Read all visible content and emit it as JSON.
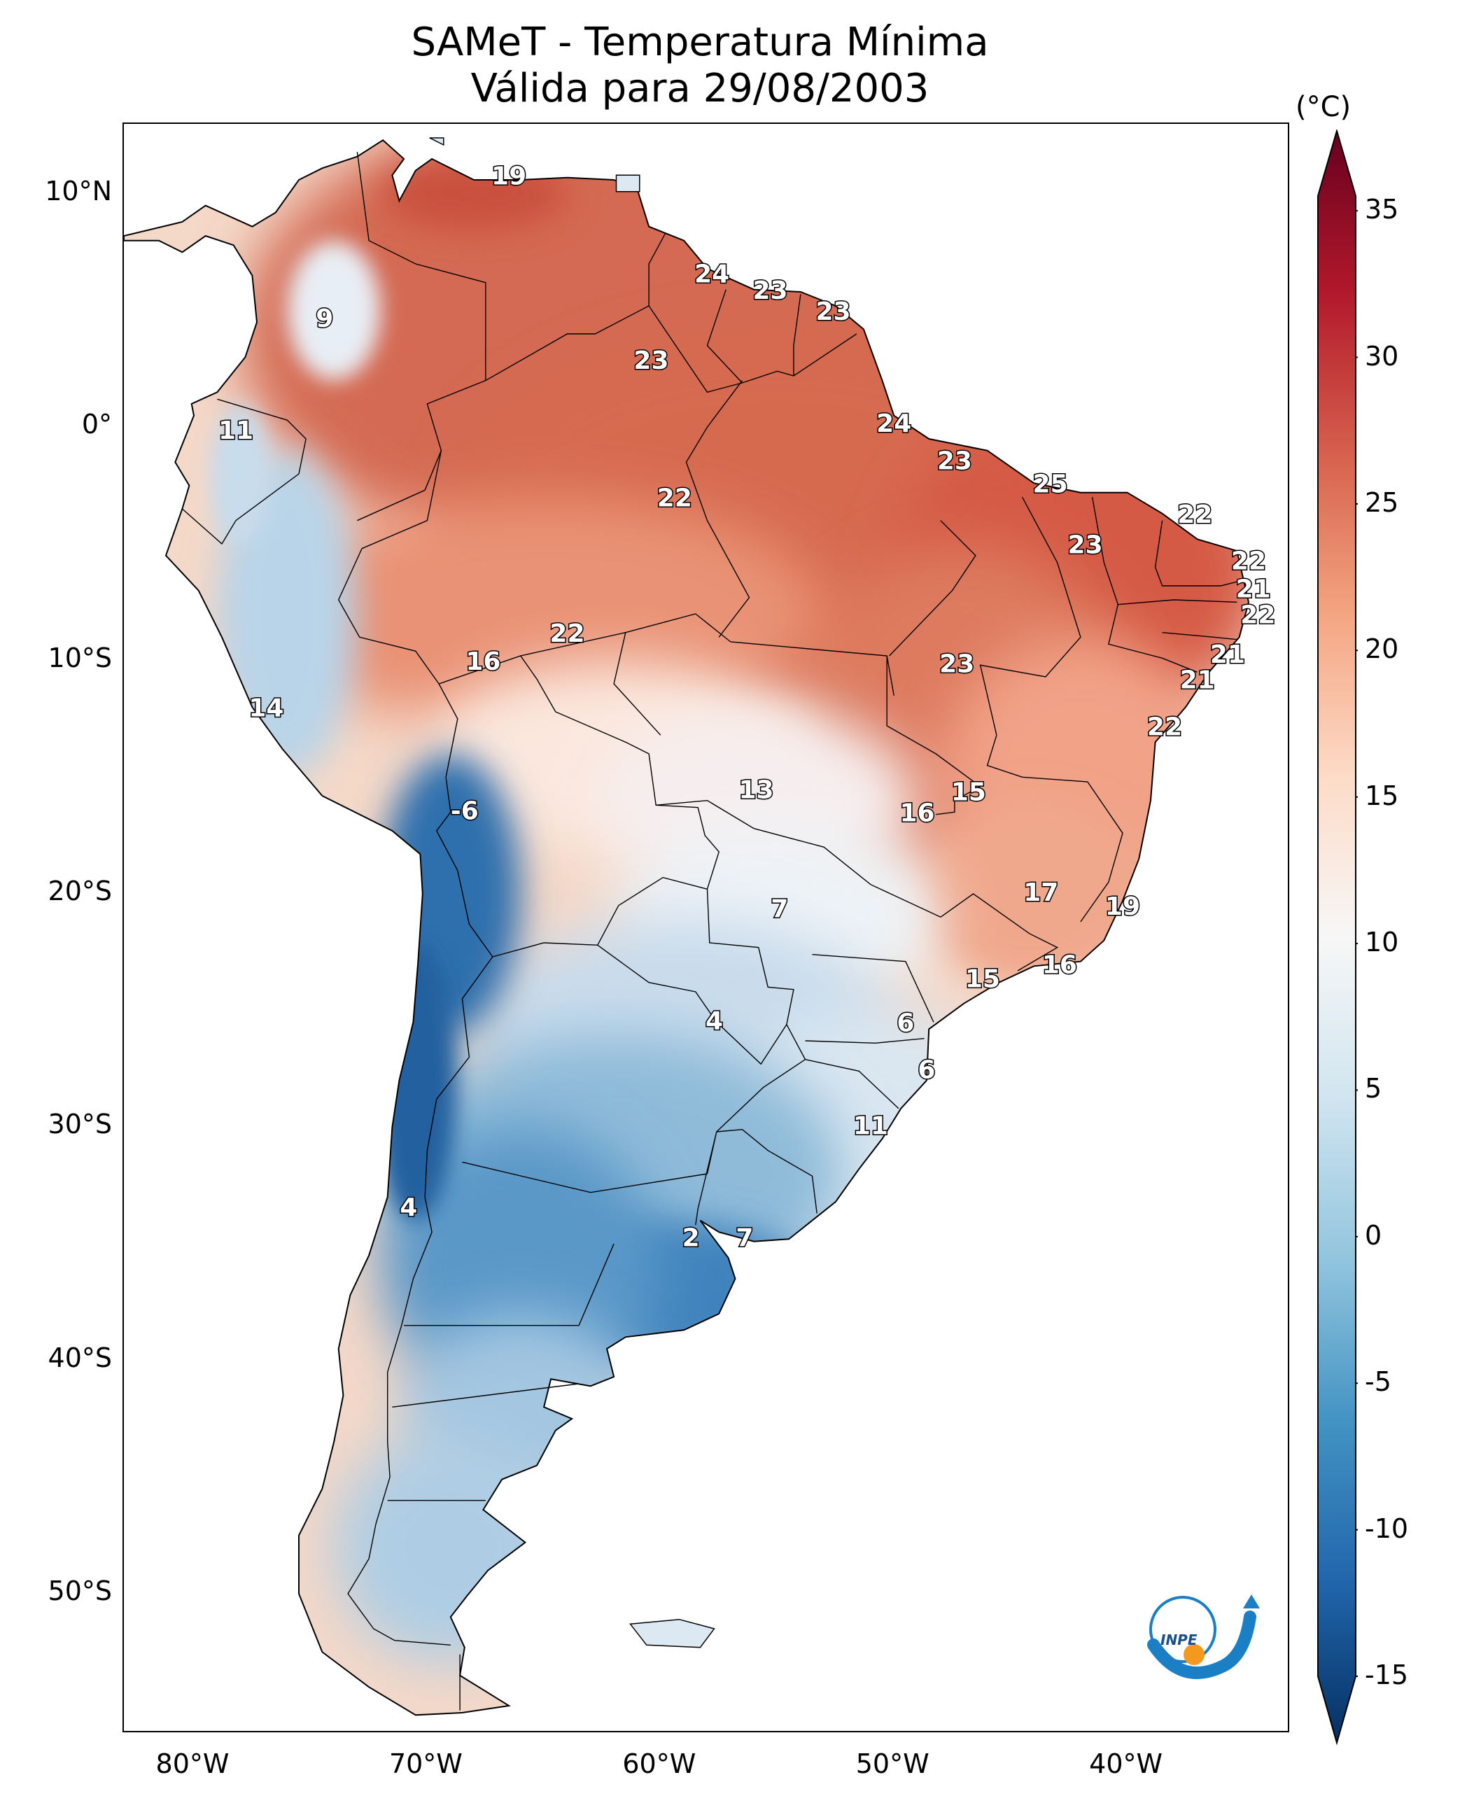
{
  "title": {
    "line1": "SAMeT - Temperatura Mínima",
    "line2": "Válida para 29/08/2003"
  },
  "colorbar": {
    "unit": "(°C)",
    "min": -15,
    "max": 35,
    "ticks": [
      "35",
      "30",
      "25",
      "20",
      "15",
      "10",
      "5",
      "0",
      "-5",
      "-10",
      "-15"
    ],
    "colors": [
      "#053061",
      "#2166ac",
      "#4393c3",
      "#92c5de",
      "#d1e5f0",
      "#f7f7f7",
      "#fddbc7",
      "#f4a582",
      "#d6604d",
      "#b2182b",
      "#67001f"
    ]
  },
  "axes": {
    "lat_labels": [
      "10°N",
      "0°",
      "10°S",
      "20°S",
      "30°S",
      "40°S",
      "50°S"
    ],
    "lon_labels": [
      "80°W",
      "70°W",
      "60°W",
      "50°W",
      "40°W"
    ]
  },
  "map_extent": {
    "lon_min": -83,
    "lon_max": -33,
    "lat_min": -56,
    "lat_max": 13
  },
  "temperature_labels": [
    {
      "text": "19",
      "lon": -66.5,
      "lat": 10.7
    },
    {
      "text": "9",
      "lon": -74.4,
      "lat": 4.6
    },
    {
      "text": "24",
      "lon": -57.8,
      "lat": 6.5
    },
    {
      "text": "23",
      "lon": -55.3,
      "lat": 5.8
    },
    {
      "text": "23",
      "lon": -52.6,
      "lat": 4.9
    },
    {
      "text": "23",
      "lon": -60.4,
      "lat": 2.8
    },
    {
      "text": "11",
      "lon": -78.2,
      "lat": -0.2
    },
    {
      "text": "24",
      "lon": -50.0,
      "lat": 0.1
    },
    {
      "text": "23",
      "lon": -47.4,
      "lat": -1.5
    },
    {
      "text": "25",
      "lon": -43.3,
      "lat": -2.5
    },
    {
      "text": "22",
      "lon": -59.4,
      "lat": -3.1
    },
    {
      "text": "22",
      "lon": -37.1,
      "lat": -3.8
    },
    {
      "text": "23",
      "lon": -41.8,
      "lat": -5.1
    },
    {
      "text": "22",
      "lon": -34.8,
      "lat": -5.8
    },
    {
      "text": "21",
      "lon": -34.6,
      "lat": -7.0
    },
    {
      "text": "22",
      "lon": -34.4,
      "lat": -8.1
    },
    {
      "text": "22",
      "lon": -64.0,
      "lat": -8.9
    },
    {
      "text": "16",
      "lon": -67.6,
      "lat": -10.1
    },
    {
      "text": "23",
      "lon": -47.3,
      "lat": -10.2
    },
    {
      "text": "21",
      "lon": -35.7,
      "lat": -9.8
    },
    {
      "text": "21",
      "lon": -37.0,
      "lat": -10.9
    },
    {
      "text": "14",
      "lon": -76.9,
      "lat": -12.1
    },
    {
      "text": "22",
      "lon": -38.4,
      "lat": -12.9
    },
    {
      "text": "13",
      "lon": -55.9,
      "lat": -15.6
    },
    {
      "text": "15",
      "lon": -46.8,
      "lat": -15.7
    },
    {
      "text": "16",
      "lon": -49.0,
      "lat": -16.6
    },
    {
      "text": "-6",
      "lon": -68.4,
      "lat": -16.5
    },
    {
      "text": "17",
      "lon": -43.7,
      "lat": -20.0
    },
    {
      "text": "19",
      "lon": -40.2,
      "lat": -20.6
    },
    {
      "text": "7",
      "lon": -54.9,
      "lat": -20.7
    },
    {
      "text": "16",
      "lon": -42.9,
      "lat": -23.1
    },
    {
      "text": "15",
      "lon": -46.2,
      "lat": -23.7
    },
    {
      "text": "4",
      "lon": -57.7,
      "lat": -25.5
    },
    {
      "text": "6",
      "lon": -49.5,
      "lat": -25.6
    },
    {
      "text": "6",
      "lon": -48.6,
      "lat": -27.6
    },
    {
      "text": "11",
      "lon": -51.0,
      "lat": -30.0
    },
    {
      "text": "4",
      "lon": -70.8,
      "lat": -33.5
    },
    {
      "text": "2",
      "lon": -58.7,
      "lat": -34.8
    },
    {
      "text": "7",
      "lon": -56.4,
      "lat": -34.8
    }
  ]
}
